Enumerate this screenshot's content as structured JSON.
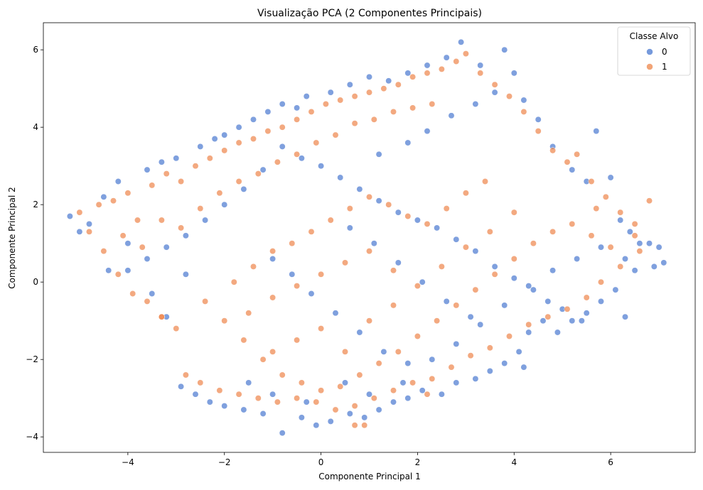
{
  "chart_data": {
    "type": "scatter",
    "title": "Visualização PCA (2 Componentes Principais)",
    "xlabel": "Componente Principal 1",
    "ylabel": "Componente Principal 2",
    "xlim": [
      -5.75,
      7.75
    ],
    "ylim": [
      -4.4,
      6.7
    ],
    "xticks": [
      -4,
      -2,
      0,
      2,
      4,
      6
    ],
    "yticks": [
      -4,
      -2,
      0,
      2,
      4,
      6
    ],
    "grid": false,
    "legend": {
      "title": "Classe Alvo",
      "placement": "top-right",
      "entries": [
        "0",
        "1"
      ]
    },
    "series": [
      {
        "name": "0",
        "color": "#4878d0",
        "points": [
          [
            -5.2,
            1.7
          ],
          [
            -5.0,
            1.3
          ],
          [
            -4.8,
            1.5
          ],
          [
            -4.5,
            2.2
          ],
          [
            -4.2,
            2.6
          ],
          [
            -4.0,
            0.3
          ],
          [
            -3.6,
            2.9
          ],
          [
            -3.3,
            3.1
          ],
          [
            -3.0,
            3.2
          ],
          [
            -2.8,
            0.2
          ],
          [
            -2.5,
            3.5
          ],
          [
            -2.2,
            3.7
          ],
          [
            -2.0,
            3.8
          ],
          [
            -1.7,
            4.0
          ],
          [
            -1.4,
            4.2
          ],
          [
            -1.1,
            4.4
          ],
          [
            -0.8,
            4.6
          ],
          [
            -0.5,
            4.5
          ],
          [
            -0.3,
            4.8
          ],
          [
            0.2,
            4.9
          ],
          [
            0.6,
            5.1
          ],
          [
            1.0,
            5.3
          ],
          [
            1.4,
            5.2
          ],
          [
            1.8,
            5.4
          ],
          [
            2.2,
            5.6
          ],
          [
            2.6,
            5.8
          ],
          [
            2.9,
            6.2
          ],
          [
            3.3,
            5.6
          ],
          [
            3.8,
            6.0
          ],
          [
            4.0,
            5.4
          ],
          [
            4.2,
            4.7
          ],
          [
            4.5,
            4.2
          ],
          [
            4.8,
            3.5
          ],
          [
            5.2,
            2.9
          ],
          [
            5.5,
            2.6
          ],
          [
            5.7,
            3.9
          ],
          [
            6.0,
            2.7
          ],
          [
            6.2,
            1.6
          ],
          [
            6.4,
            1.3
          ],
          [
            6.6,
            1.0
          ],
          [
            6.8,
            1.0
          ],
          [
            7.0,
            0.9
          ],
          [
            7.1,
            0.5
          ],
          [
            6.9,
            0.4
          ],
          [
            6.5,
            0.3
          ],
          [
            6.3,
            0.6
          ],
          [
            6.1,
            -0.2
          ],
          [
            5.8,
            -0.5
          ],
          [
            5.5,
            -0.8
          ],
          [
            5.2,
            -1.0
          ],
          [
            4.9,
            -1.3
          ],
          [
            4.6,
            -1.0
          ],
          [
            4.3,
            -1.3
          ],
          [
            4.1,
            -1.8
          ],
          [
            4.2,
            -2.2
          ],
          [
            3.8,
            -2.1
          ],
          [
            3.5,
            -2.3
          ],
          [
            3.2,
            -2.5
          ],
          [
            2.8,
            -2.6
          ],
          [
            2.5,
            -2.9
          ],
          [
            2.1,
            -2.8
          ],
          [
            1.8,
            -3.0
          ],
          [
            1.5,
            -3.1
          ],
          [
            1.2,
            -3.3
          ],
          [
            0.9,
            -3.5
          ],
          [
            0.6,
            -3.4
          ],
          [
            0.2,
            -3.6
          ],
          [
            -0.1,
            -3.7
          ],
          [
            -0.4,
            -3.5
          ],
          [
            -0.8,
            -3.9
          ],
          [
            -1.2,
            -3.4
          ],
          [
            -1.6,
            -3.3
          ],
          [
            -2.0,
            -3.2
          ],
          [
            -2.3,
            -3.1
          ],
          [
            -2.6,
            -2.9
          ],
          [
            -2.9,
            -2.7
          ],
          [
            -3.2,
            -0.9
          ],
          [
            -3.5,
            -0.3
          ],
          [
            6.3,
            -0.9
          ],
          [
            5.4,
            -1.0
          ],
          [
            5.0,
            -0.7
          ],
          [
            4.7,
            -0.5
          ],
          [
            4.4,
            -0.2
          ],
          [
            4.0,
            0.1
          ],
          [
            3.6,
            0.4
          ],
          [
            3.2,
            0.8
          ],
          [
            2.8,
            1.1
          ],
          [
            2.4,
            1.4
          ],
          [
            2.0,
            1.6
          ],
          [
            1.6,
            1.8
          ],
          [
            1.2,
            2.1
          ],
          [
            0.8,
            2.4
          ],
          [
            0.4,
            2.7
          ],
          [
            0.0,
            3.0
          ],
          [
            -0.4,
            3.2
          ],
          [
            -0.8,
            3.5
          ],
          [
            -1.2,
            2.9
          ],
          [
            -1.6,
            2.4
          ],
          [
            -2.0,
            2.0
          ],
          [
            -2.4,
            1.6
          ],
          [
            -2.8,
            1.2
          ],
          [
            -3.2,
            0.9
          ],
          [
            -3.6,
            0.6
          ],
          [
            -4.0,
            1.0
          ],
          [
            -4.4,
            0.3
          ],
          [
            -1.0,
            0.6
          ],
          [
            -0.6,
            0.2
          ],
          [
            -0.2,
            -0.3
          ],
          [
            0.3,
            -0.8
          ],
          [
            0.8,
            -1.3
          ],
          [
            1.3,
            -1.8
          ],
          [
            1.8,
            -2.1
          ],
          [
            2.3,
            -2.0
          ],
          [
            2.8,
            -1.6
          ],
          [
            3.3,
            -1.1
          ],
          [
            3.8,
            -0.6
          ],
          [
            4.3,
            -0.1
          ],
          [
            4.8,
            0.3
          ],
          [
            5.3,
            0.6
          ],
          [
            5.8,
            0.9
          ],
          [
            0.5,
            -2.6
          ],
          [
            1.0,
            -2.9
          ],
          [
            -0.3,
            -3.1
          ],
          [
            -1.0,
            -2.9
          ],
          [
            -1.5,
            -2.6
          ],
          [
            1.7,
            -2.6
          ],
          [
            2.2,
            3.9
          ],
          [
            2.7,
            4.3
          ],
          [
            3.2,
            4.6
          ],
          [
            3.6,
            4.9
          ],
          [
            1.8,
            3.6
          ],
          [
            1.2,
            3.3
          ],
          [
            0.6,
            1.4
          ],
          [
            1.1,
            1.0
          ],
          [
            1.6,
            0.5
          ],
          [
            2.1,
            0.0
          ],
          [
            2.6,
            -0.5
          ],
          [
            3.1,
            -0.9
          ]
        ]
      },
      {
        "name": "1",
        "color": "#ee854a",
        "points": [
          [
            -5.0,
            1.8
          ],
          [
            -4.8,
            1.3
          ],
          [
            -4.6,
            2.0
          ],
          [
            -4.3,
            2.1
          ],
          [
            -4.0,
            2.3
          ],
          [
            -3.8,
            1.6
          ],
          [
            -3.5,
            2.5
          ],
          [
            -3.2,
            2.8
          ],
          [
            -2.9,
            2.6
          ],
          [
            -2.6,
            3.0
          ],
          [
            -2.3,
            3.2
          ],
          [
            -2.0,
            3.4
          ],
          [
            -1.7,
            3.6
          ],
          [
            -1.4,
            3.7
          ],
          [
            -1.1,
            3.9
          ],
          [
            -0.8,
            4.0
          ],
          [
            -0.5,
            4.2
          ],
          [
            -0.2,
            4.4
          ],
          [
            0.1,
            4.6
          ],
          [
            0.4,
            4.7
          ],
          [
            0.7,
            4.8
          ],
          [
            1.0,
            4.9
          ],
          [
            1.3,
            5.0
          ],
          [
            1.6,
            5.1
          ],
          [
            1.9,
            5.3
          ],
          [
            2.2,
            5.4
          ],
          [
            2.5,
            5.5
          ],
          [
            2.8,
            5.7
          ],
          [
            3.0,
            5.9
          ],
          [
            3.3,
            5.4
          ],
          [
            3.6,
            5.1
          ],
          [
            3.9,
            4.8
          ],
          [
            4.2,
            4.4
          ],
          [
            4.5,
            3.9
          ],
          [
            4.8,
            3.4
          ],
          [
            5.1,
            3.1
          ],
          [
            5.3,
            3.3
          ],
          [
            5.6,
            2.6
          ],
          [
            5.9,
            2.2
          ],
          [
            6.2,
            1.8
          ],
          [
            6.5,
            1.5
          ],
          [
            6.8,
            2.1
          ],
          [
            6.6,
            0.8
          ],
          [
            6.2,
            0.4
          ],
          [
            5.8,
            0.0
          ],
          [
            5.5,
            -0.4
          ],
          [
            5.1,
            -0.7
          ],
          [
            4.7,
            -0.9
          ],
          [
            4.3,
            -1.1
          ],
          [
            3.9,
            -1.4
          ],
          [
            3.5,
            -1.7
          ],
          [
            3.1,
            -1.9
          ],
          [
            2.7,
            -2.2
          ],
          [
            2.3,
            -2.5
          ],
          [
            1.9,
            -2.6
          ],
          [
            1.5,
            -2.8
          ],
          [
            1.1,
            -3.0
          ],
          [
            0.7,
            -3.2
          ],
          [
            0.3,
            -3.3
          ],
          [
            -0.1,
            -3.1
          ],
          [
            -0.5,
            -3.0
          ],
          [
            -0.9,
            -3.1
          ],
          [
            -1.3,
            -3.0
          ],
          [
            -1.7,
            -2.9
          ],
          [
            -2.1,
            -2.8
          ],
          [
            -2.5,
            -2.6
          ],
          [
            -2.8,
            -2.4
          ],
          [
            -3.0,
            -1.2
          ],
          [
            -3.3,
            -0.9
          ],
          [
            -3.6,
            -0.5
          ],
          [
            -3.9,
            -0.3
          ],
          [
            -4.2,
            0.2
          ],
          [
            -4.5,
            0.8
          ],
          [
            -4.1,
            1.2
          ],
          [
            -3.7,
            0.9
          ],
          [
            -3.3,
            1.6
          ],
          [
            -2.9,
            1.4
          ],
          [
            -2.5,
            1.9
          ],
          [
            -2.1,
            2.3
          ],
          [
            -1.7,
            2.6
          ],
          [
            -1.3,
            2.8
          ],
          [
            -0.9,
            3.1
          ],
          [
            -0.5,
            3.3
          ],
          [
            -0.1,
            3.6
          ],
          [
            0.3,
            3.8
          ],
          [
            0.7,
            4.1
          ],
          [
            1.1,
            4.2
          ],
          [
            1.5,
            4.4
          ],
          [
            1.9,
            4.5
          ],
          [
            2.3,
            4.6
          ],
          [
            -2.4,
            -0.5
          ],
          [
            -2.0,
            -1.0
          ],
          [
            -1.6,
            -1.5
          ],
          [
            -1.2,
            -2.0
          ],
          [
            -0.8,
            -2.4
          ],
          [
            -0.4,
            -2.6
          ],
          [
            0.0,
            -2.8
          ],
          [
            0.4,
            -2.7
          ],
          [
            0.8,
            -2.4
          ],
          [
            1.2,
            -2.1
          ],
          [
            1.6,
            -1.8
          ],
          [
            2.0,
            -1.4
          ],
          [
            2.4,
            -1.0
          ],
          [
            2.8,
            -0.6
          ],
          [
            3.2,
            -0.2
          ],
          [
            3.6,
            0.2
          ],
          [
            4.0,
            0.6
          ],
          [
            4.4,
            1.0
          ],
          [
            4.8,
            1.3
          ],
          [
            5.2,
            1.5
          ],
          [
            5.6,
            1.2
          ],
          [
            6.0,
            0.9
          ],
          [
            -1.8,
            0.0
          ],
          [
            -1.4,
            0.4
          ],
          [
            -1.0,
            0.8
          ],
          [
            -0.6,
            1.0
          ],
          [
            -0.2,
            1.3
          ],
          [
            0.2,
            1.6
          ],
          [
            0.6,
            1.9
          ],
          [
            1.0,
            2.2
          ],
          [
            1.4,
            2.0
          ],
          [
            1.8,
            1.7
          ],
          [
            2.2,
            1.5
          ],
          [
            2.6,
            1.9
          ],
          [
            3.0,
            2.3
          ],
          [
            3.4,
            2.6
          ],
          [
            -1.5,
            -0.8
          ],
          [
            -1.0,
            -0.4
          ],
          [
            -0.5,
            -0.1
          ],
          [
            0.0,
            0.2
          ],
          [
            0.5,
            0.5
          ],
          [
            1.0,
            0.8
          ],
          [
            1.5,
            0.3
          ],
          [
            2.0,
            -0.1
          ],
          [
            2.5,
            0.4
          ],
          [
            3.0,
            0.9
          ],
          [
            3.5,
            1.3
          ],
          [
            4.0,
            1.8
          ],
          [
            -0.5,
            -1.5
          ],
          [
            0.0,
            -1.2
          ],
          [
            0.5,
            -1.8
          ],
          [
            1.0,
            -1.0
          ],
          [
            1.5,
            -0.6
          ],
          [
            -1.0,
            -1.8
          ],
          [
            0.7,
            -3.7
          ],
          [
            0.9,
            -3.7
          ],
          [
            2.2,
            -2.9
          ],
          [
            -3.3,
            -0.9
          ],
          [
            6.5,
            1.2
          ],
          [
            5.7,
            1.9
          ]
        ]
      }
    ]
  }
}
